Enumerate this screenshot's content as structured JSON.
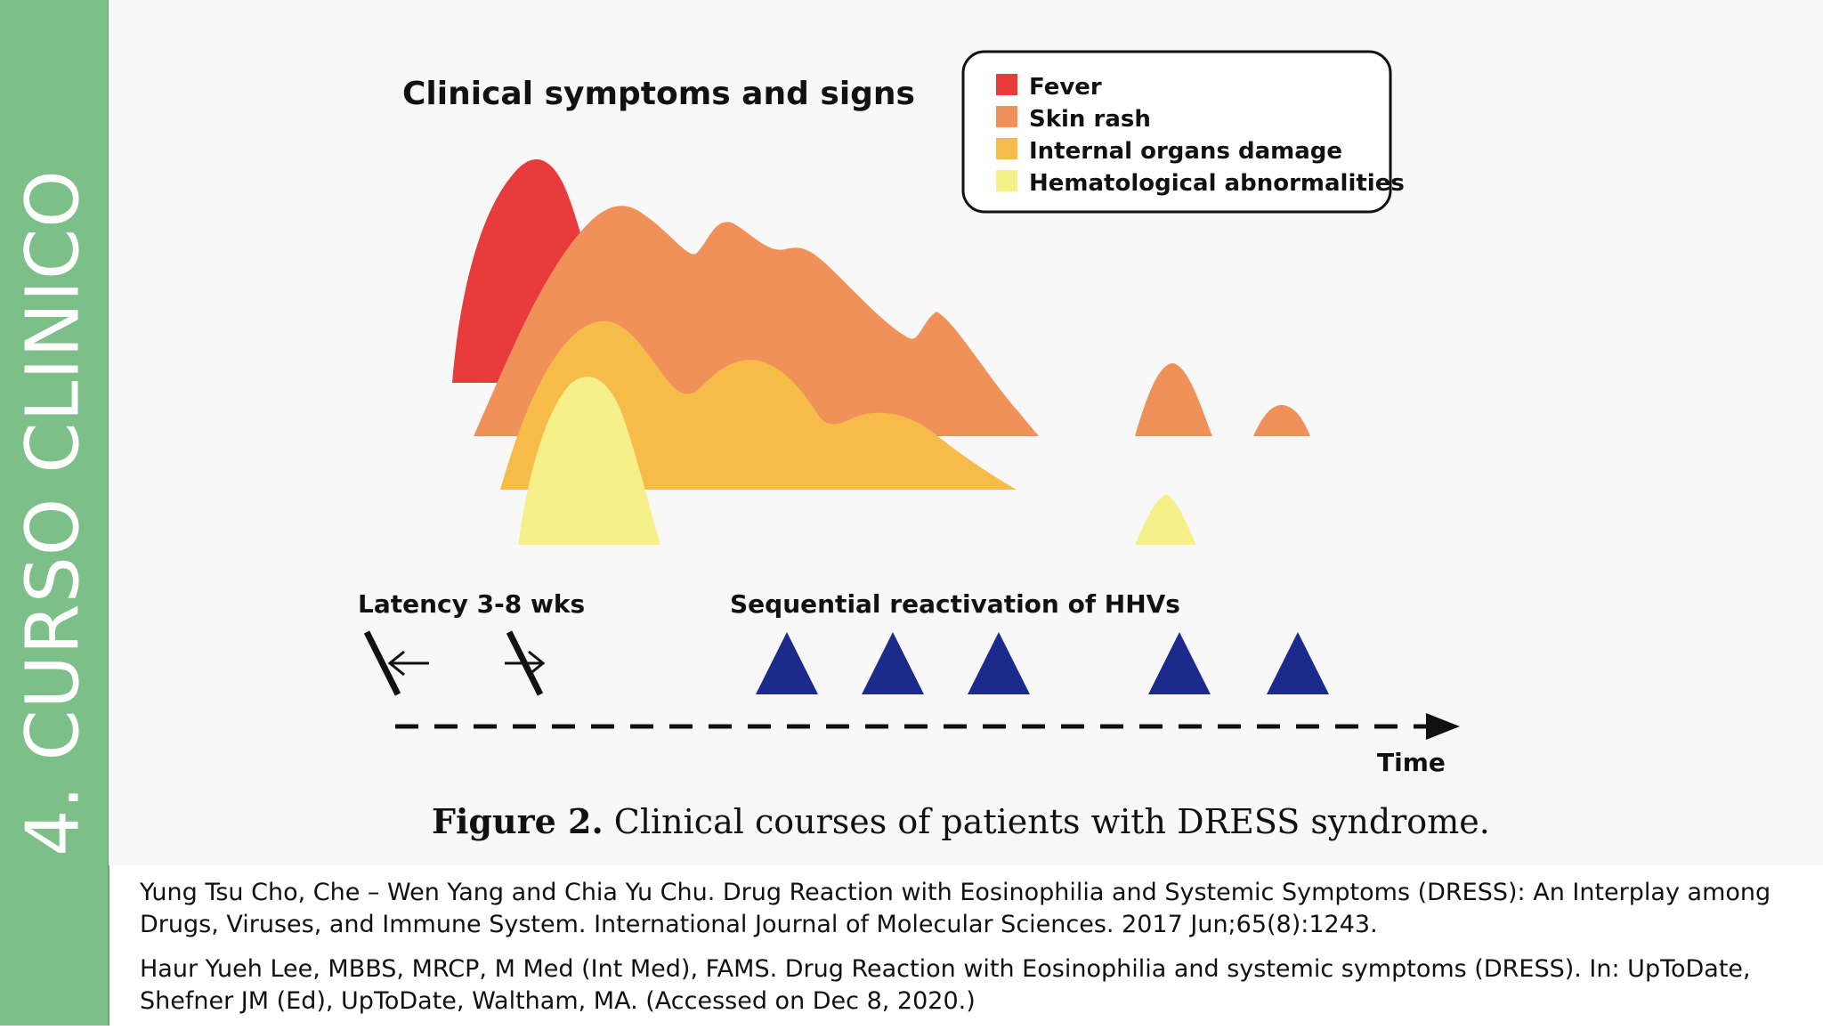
{
  "sidebar": {
    "title": "4. CURSO CLINICO"
  },
  "figure": {
    "title": "Clinical symptoms and signs",
    "legend": [
      {
        "label": "Fever",
        "color": "#e83c3c"
      },
      {
        "label": "Skin rash",
        "color": "#f0915a"
      },
      {
        "label": "Internal organs damage",
        "color": "#f7bb4a"
      },
      {
        "label": "Hematological abnormalities",
        "color": "#f5f08a"
      }
    ],
    "latency_label": "Latency 3-8 wks",
    "reactivation_label": "Sequential reactivation of HHVs",
    "time_label": "Time",
    "triangle_color": "#1c2a8c"
  },
  "caption": {
    "bold": "Figure 2.",
    "text": " Clinical courses of patients with DRESS syndrome."
  },
  "references": [
    "Yung Tsu Cho, Che – Wen Yang and Chia Yu Chu. Drug Reaction with Eosinophilia and Systemic Symptoms (DRESS): An Interplay among Drugs, Viruses, and Immune System. International Journal of Molecular Sciences. 2017 Jun;65(8):1243.",
    "Haur Yueh Lee, MBBS, MRCP, M Med (Int Med), FAMS. Drug Reaction with Eosinophilia and systemic symptoms (DRESS). In: UpToDate, Shefner JM (Ed), UpToDate, Waltham, MA. (Accessed on Dec 8, 2020.)"
  ]
}
